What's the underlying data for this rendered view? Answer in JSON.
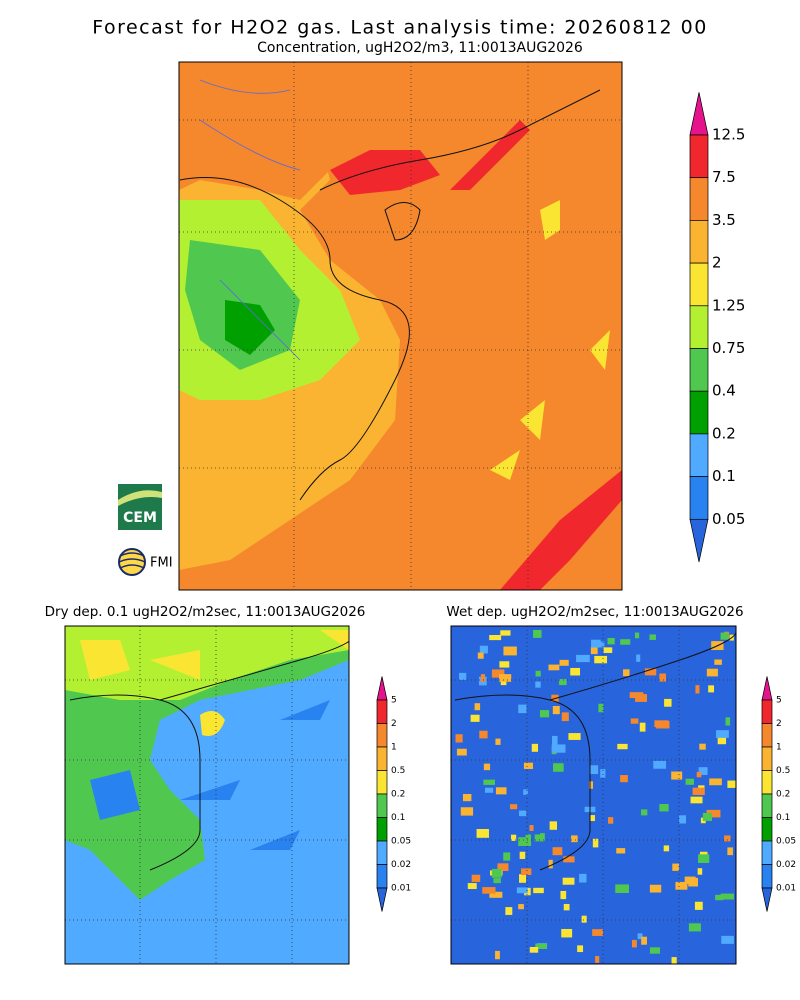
{
  "main": {
    "title": "Forecast for H2O2 gas. Last analysis time: 20260812 00",
    "subtitle": "Concentration, ugH2O2/m3, 11:0013AUG2026",
    "colorbar": {
      "labels": [
        "12.5",
        "7.5",
        "3.5",
        "2",
        "1.25",
        "0.75",
        "0.4",
        "0.2",
        "0.1",
        "0.05"
      ],
      "colors": [
        "#e6148c",
        "#f0282d",
        "#f5872d",
        "#fab432",
        "#fae632",
        "#b4f032",
        "#50c850",
        "#00a000",
        "#50aaff",
        "#2882f0",
        "#2864dc"
      ]
    }
  },
  "dry": {
    "title": "Dry dep. 0.1 ugH2O2/m2sec, 11:0013AUG2026",
    "colorbar": {
      "labels": [
        "5",
        "2",
        "1",
        "0.5",
        "0.2",
        "0.1",
        "0.05",
        "0.02",
        "0.01"
      ],
      "colors": [
        "#e6148c",
        "#f0282d",
        "#f5872d",
        "#fab432",
        "#fae632",
        "#50c850",
        "#00a000",
        "#50aaff",
        "#2882f0",
        "#2864dc"
      ]
    }
  },
  "wet": {
    "title": "Wet dep. ugH2O2/m2sec, 11:0013AUG2026",
    "colorbar": {
      "labels": [
        "5",
        "2",
        "1",
        "0.5",
        "0.2",
        "0.1",
        "0.05",
        "0.02",
        "0.01"
      ],
      "colors": [
        "#e6148c",
        "#f0282d",
        "#f5872d",
        "#fab432",
        "#fae632",
        "#50c850",
        "#00a000",
        "#50aaff",
        "#2882f0",
        "#2864dc"
      ]
    }
  },
  "logos": {
    "cem": "CEM",
    "fmi": "FMI"
  }
}
